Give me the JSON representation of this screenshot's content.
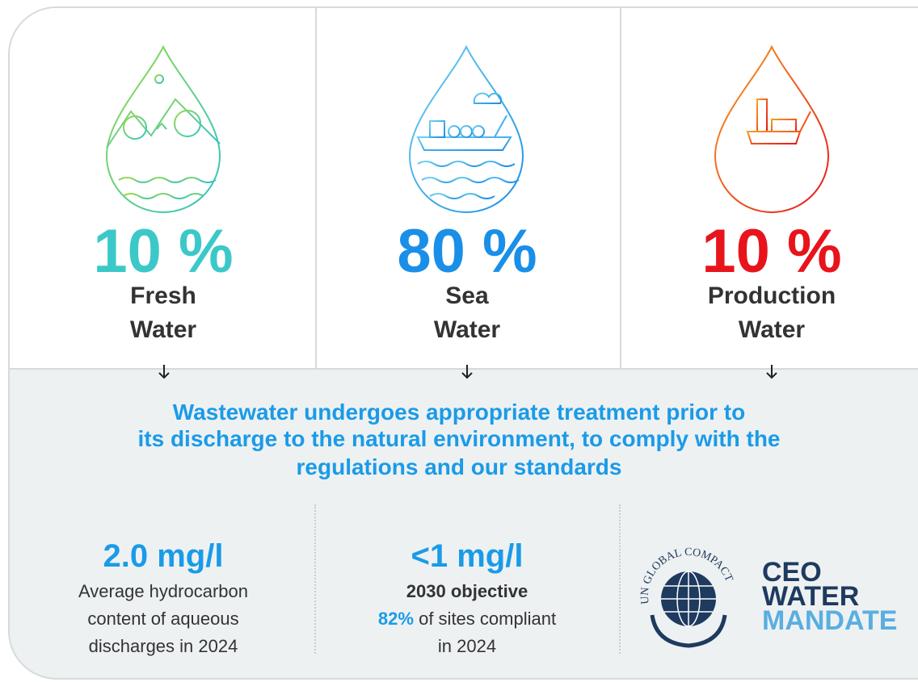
{
  "columns": [
    {
      "percent": "10 %",
      "label_line1": "Fresh",
      "label_line2": "Water"
    },
    {
      "percent": "80 %",
      "label_line1": "Sea",
      "label_line2": "Water"
    },
    {
      "percent": "10 %",
      "label_line1": "Production",
      "label_line2": "Water"
    }
  ],
  "statement": {
    "line1": "Wastewater undergoes appropriate treatment prior to",
    "line2": "its discharge to the natural environment, to comply with the",
    "line3": "regulations and our standards"
  },
  "stats": [
    {
      "value": "2.0 mg/l",
      "line1": "Average hydrocarbon",
      "line2": "content of aqueous",
      "line3": "discharges in 2024"
    },
    {
      "value": "<1 mg/l",
      "line1": "2030 objective",
      "highlight": "82%",
      "line2": "of sites compliant",
      "line3": "in 2024"
    }
  ],
  "logo": {
    "ring": "UN GLOBAL COMPACT",
    "line1": "CEO",
    "line2": "WATER",
    "line3": "MANDATE"
  }
}
